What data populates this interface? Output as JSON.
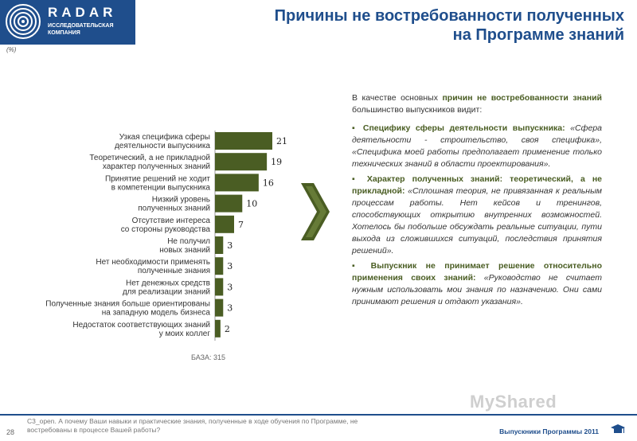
{
  "header": {
    "brand_name": "RADAR",
    "brand_sub_line1": "ИССЛЕДОВАТЕЛЬСКАЯ",
    "brand_sub_line2": "КОМПАНИЯ",
    "title_line1": "Причины не востребованности полученных",
    "title_line2": "на Программе знаний"
  },
  "unit_note": "(%)",
  "chart_data": {
    "type": "bar",
    "orientation": "horizontal",
    "categories": [
      [
        "Узкая специфика сферы",
        "деятельности выпускника"
      ],
      [
        "Теоретический, а не прикладной",
        "характер полученных знаний"
      ],
      [
        "Принятие решений не ходит",
        "в компетенции выпускника"
      ],
      [
        "Низкий уровень",
        "полученных знаний"
      ],
      [
        "Отсутствие интереса",
        "со стороны руководства"
      ],
      [
        "Не получил",
        "новых знаний"
      ],
      [
        "Нет необходимости применять",
        "полученные знания"
      ],
      [
        "Нет денежных средств",
        "для реализации знаний"
      ],
      [
        "Полученные знания больше ориентированы",
        "на западную модель бизнеса"
      ],
      [
        "Недостаток соответствующих знаний",
        "у моих коллег"
      ]
    ],
    "values": [
      21,
      19,
      16,
      10,
      7,
      3,
      3,
      3,
      3,
      2
    ],
    "xlim": [
      0,
      21
    ],
    "bar_color": "#4a5d23",
    "grid": false,
    "legend": "none"
  },
  "base_label": "БАЗА: 315",
  "text": {
    "intro_1": "В качестве основных ",
    "intro_hl": "причин не востребованности знаний",
    "intro_2": " большинство выпускников видит:",
    "b1_title": "▪ Специфику сферы деятельности выпускника:",
    "b1_quote": " «Сфера деятельности - строительство, своя специфика», «Специфика моей работы предполагает применение только технических знаний в области проектирования».",
    "b2_title": "▪ Характер полученных знаний: теоретический, а не прикладной:",
    "b2_quote": " «Сплошная теория, не привязанная к реальным процессам работы. Нет кейсов и тренингов, способствующих открытию внутренних возможностей. Хотелось бы побольше обсуждать реальные ситуации, пути выхода из сложившихся ситуаций, последствия принятия решений».",
    "b3_title": "▪ Выпускник не принимает решение относительно применения своих знаний:",
    "b3_quote": " «Руководство не считает нужным использовать мои знания по назначению. Они сами принимают решения и отдают указания»."
  },
  "footer": {
    "page_number": "28",
    "footnote": "C3_open. А почему Ваши навыки и практические знания, полученные в ходе обучения по Программе, не востребованы в процессе Вашей работы?",
    "brand": "Выпускники Программы 2011",
    "watermark": "MyShared"
  }
}
